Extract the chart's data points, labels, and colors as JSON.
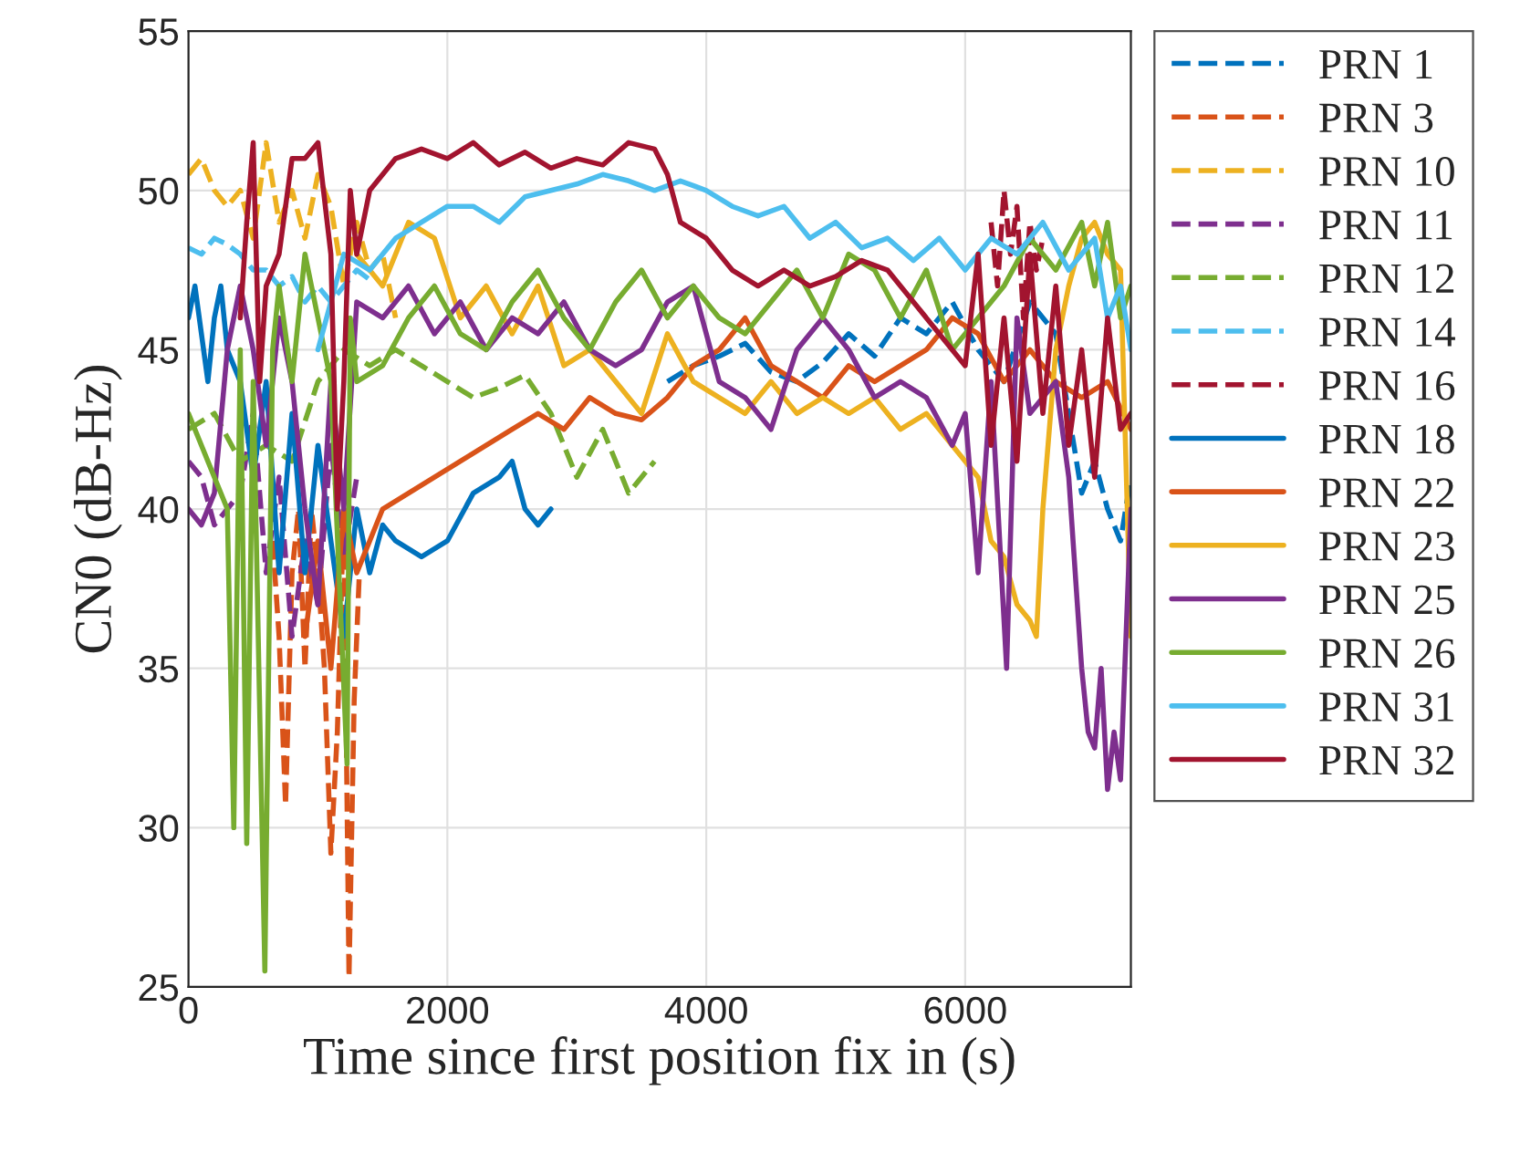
{
  "chart_data": {
    "type": "line",
    "xlabel": "Time since first position fix in (s)",
    "ylabel": "CN0 (dB-Hz)",
    "xlim": [
      0,
      7280
    ],
    "xticks": [
      0,
      2000,
      4000,
      6000
    ],
    "ylim": [
      25,
      55
    ],
    "yticks": [
      25,
      30,
      35,
      40,
      45,
      50,
      55
    ],
    "grid": true,
    "legend": "right",
    "series": [
      {
        "name": "PRN 1",
        "color": "#0072bd",
        "line_style": "dashed",
        "x": [
          3700,
          3900,
          4100,
          4300,
          4500,
          4700,
          4900,
          5100,
          5300,
          5500,
          5700,
          5900,
          6100,
          6300,
          6500,
          6700,
          6900,
          7000,
          7100,
          7200,
          7280
        ],
        "values": [
          44.0,
          44.5,
          44.8,
          45.2,
          44.3,
          44.0,
          44.6,
          45.5,
          44.8,
          46.0,
          45.5,
          46.5,
          45.0,
          44.0,
          46.5,
          45.5,
          40.5,
          41.5,
          40.0,
          39.0,
          41.0
        ]
      },
      {
        "name": "PRN 3",
        "color": "#d95319",
        "line_style": "dashed",
        "x": [
          650,
          700,
          750,
          800,
          850,
          900,
          950,
          1000,
          1050,
          1100,
          1150,
          1200,
          1240,
          1280,
          1320
        ],
        "values": [
          39,
          36,
          30.7,
          38,
          40,
          35,
          40,
          38,
          35,
          29.2,
          33,
          40,
          25.3,
          34,
          38
        ]
      },
      {
        "name": "PRN 10",
        "color": "#edb120",
        "line_style": "dashed",
        "x": [
          0,
          100,
          200,
          300,
          400,
          500,
          600,
          700,
          800,
          900,
          1000,
          1100,
          1200,
          1300,
          1400,
          1500,
          1600
        ],
        "values": [
          50.5,
          51,
          50,
          49.5,
          50,
          48.5,
          51.5,
          49,
          50,
          48.5,
          50.5,
          49.5,
          47,
          49,
          47.5,
          48,
          46
        ]
      },
      {
        "name": "PRN 11",
        "color": "#7e2f8e",
        "line_style": "dashed",
        "x": [
          0,
          100,
          200,
          300,
          400,
          500,
          600,
          700,
          800,
          900,
          1000,
          1100,
          1200,
          1300
        ],
        "values": [
          41.5,
          41,
          39.5,
          40,
          40.5,
          43,
          38,
          41,
          36,
          39,
          37,
          42,
          38.5,
          41
        ]
      },
      {
        "name": "PRN 12",
        "color": "#77ac30",
        "line_style": "dashed",
        "x": [
          0,
          200,
          400,
          600,
          800,
          1000,
          1200,
          1400,
          1600,
          1800,
          2000,
          2200,
          2400,
          2600,
          2800,
          3000,
          3200,
          3400,
          3600
        ],
        "values": [
          42.5,
          43,
          41.5,
          42,
          41.5,
          44,
          45,
          44.5,
          45,
          44.5,
          44.0,
          43.5,
          43.8,
          44.2,
          43,
          41,
          42.5,
          40.5,
          41.5
        ]
      },
      {
        "name": "PRN 14",
        "color": "#4dbeee",
        "line_style": "dashed",
        "x": [
          0,
          100,
          200,
          300,
          400,
          500,
          600,
          700,
          800,
          900,
          1000,
          1100,
          1200,
          1300,
          1400
        ],
        "values": [
          48.2,
          48,
          48.5,
          48.3,
          48,
          47.5,
          47.5,
          47,
          47.3,
          46.5,
          47,
          46.5,
          47,
          47.5,
          47.2
        ]
      },
      {
        "name": "PRN 16",
        "color": "#a2142f",
        "line_style": "dashed",
        "x": [
          6200,
          6250,
          6300,
          6350,
          6400,
          6450,
          6500,
          6550,
          6600
        ],
        "values": [
          49,
          47,
          50,
          48,
          49.5,
          46,
          49,
          47.5,
          48.5
        ]
      },
      {
        "name": "PRN 18",
        "color": "#0072bd",
        "line_style": "solid",
        "x": [
          0,
          50,
          100,
          150,
          200,
          250,
          300,
          400,
          500,
          600,
          700,
          800,
          900,
          1000,
          1100,
          1200,
          1300,
          1400,
          1500,
          1600,
          1800,
          2000,
          2200,
          2400,
          2500,
          2600,
          2700,
          2800
        ],
        "values": [
          46,
          47,
          45.5,
          44,
          46,
          47,
          45,
          44,
          41,
          44,
          38,
          43,
          38,
          42,
          39,
          36,
          40,
          38,
          39.5,
          39,
          38.5,
          39,
          40.5,
          41,
          41.5,
          40,
          39.5,
          40
        ]
      },
      {
        "name": "PRN 22",
        "color": "#d95319",
        "line_style": "solid",
        "x": [
          900,
          1000,
          1100,
          1200,
          1300,
          1400,
          1500,
          1700,
          1900,
          2100,
          2300,
          2500,
          2700,
          2900,
          3100,
          3300,
          3500,
          3700,
          3900,
          4100,
          4300,
          4500,
          4700,
          4900,
          5100,
          5300,
          5500,
          5700,
          5900,
          6100,
          6300,
          6500,
          6700,
          6900,
          7100,
          7280
        ],
        "values": [
          36,
          39,
          35,
          40,
          38,
          39,
          40,
          40.5,
          41,
          41.5,
          42,
          42.5,
          43,
          42.5,
          43.5,
          43,
          42.8,
          43.5,
          44.5,
          45,
          46,
          44.5,
          44,
          43.5,
          44.5,
          44,
          44.5,
          45,
          46,
          45.5,
          44,
          45,
          44,
          43.5,
          44,
          42.5
        ]
      },
      {
        "name": "PRN 23",
        "color": "#edb120",
        "line_style": "solid",
        "x": [
          1300,
          1500,
          1700,
          1900,
          2100,
          2300,
          2500,
          2700,
          2900,
          3100,
          3300,
          3500,
          3700,
          3900,
          4100,
          4300,
          4500,
          4700,
          4900,
          5100,
          5300,
          5500,
          5700,
          5900,
          6100,
          6200,
          6300,
          6400,
          6500,
          6550,
          6600,
          6700,
          6800,
          6900,
          7000,
          7100,
          7200,
          7280
        ],
        "values": [
          48,
          47,
          49,
          48.5,
          46,
          47,
          45.5,
          47,
          44.5,
          45,
          44,
          43,
          45.5,
          44,
          43.5,
          43,
          44,
          43,
          43.5,
          43,
          43.5,
          42.5,
          43,
          42,
          41,
          39,
          38.5,
          37,
          36.5,
          36,
          40,
          45,
          47,
          48.5,
          49,
          48,
          47.5,
          36
        ]
      },
      {
        "name": "PRN 25",
        "color": "#7e2f8e",
        "line_style": "solid",
        "x": [
          0,
          100,
          200,
          300,
          400,
          450,
          500,
          600,
          700,
          800,
          900,
          1000,
          1100,
          1200,
          1300,
          1500,
          1700,
          1900,
          2100,
          2300,
          2500,
          2700,
          2900,
          3100,
          3300,
          3500,
          3700,
          3900,
          4100,
          4300,
          4500,
          4700,
          4900,
          5100,
          5300,
          5500,
          5700,
          5900,
          6000,
          6100,
          6200,
          6320,
          6400,
          6500,
          6700,
          6800,
          6900,
          6950,
          7000,
          7050,
          7100,
          7150,
          7200,
          7280
        ],
        "values": [
          40,
          39.5,
          40.5,
          45,
          47,
          null,
          45,
          42,
          46,
          44,
          40,
          37,
          44,
          40,
          46.5,
          46,
          47,
          45.5,
          46.5,
          45,
          46,
          45.5,
          46.5,
          45,
          44.5,
          45,
          46.5,
          47,
          44,
          43.5,
          42.5,
          45,
          46,
          45,
          43.5,
          44,
          43.5,
          42,
          43,
          38,
          44,
          35,
          46,
          43,
          44,
          41,
          35,
          33,
          32.5,
          35,
          31.2,
          33,
          31.5,
          40
        ]
      },
      {
        "name": "PRN 26",
        "color": "#77ac30",
        "line_style": "solid",
        "x": [
          0,
          100,
          200,
          300,
          350,
          400,
          450,
          500,
          590,
          650,
          700,
          800,
          900,
          1000,
          1100,
          1225,
          1250,
          1300,
          1500,
          1700,
          1900,
          2100,
          2300,
          2500,
          2700,
          2900,
          3100,
          3300,
          3500,
          3700,
          3900,
          4100,
          4300,
          4500,
          4700,
          4900,
          5100,
          5300,
          5500,
          5700,
          5900,
          6100,
          6300,
          6500,
          6700,
          6900,
          7000,
          7100,
          7200,
          7280
        ],
        "values": [
          43,
          42,
          41,
          40,
          30,
          45,
          29.5,
          44,
          25.5,
          45,
          47,
          44,
          48,
          46,
          44,
          32,
          46,
          44,
          44.5,
          46,
          47,
          45.5,
          45,
          46.5,
          47.5,
          46,
          45,
          46.5,
          47.5,
          46,
          47,
          46,
          45.5,
          46.5,
          47.5,
          46,
          48,
          47.5,
          46,
          47.5,
          45,
          46,
          47,
          48.5,
          47.5,
          49,
          47,
          49,
          46,
          47
        ]
      },
      {
        "name": "PRN 31",
        "color": "#4dbeee",
        "line_style": "solid",
        "x": [
          1000,
          1200,
          1400,
          1600,
          1800,
          2000,
          2200,
          2400,
          2600,
          2800,
          3000,
          3200,
          3400,
          3600,
          3800,
          4000,
          4200,
          4400,
          4600,
          4800,
          5000,
          5200,
          5400,
          5600,
          5800,
          6000,
          6200,
          6400,
          6600,
          6800,
          7000,
          7100,
          7200,
          7280
        ],
        "values": [
          45,
          48,
          47.5,
          48.5,
          49,
          49.5,
          49.5,
          49,
          49.8,
          50,
          50.2,
          50.5,
          50.3,
          50,
          50.3,
          50,
          49.5,
          49.2,
          49.5,
          48.5,
          49,
          48.2,
          48.5,
          47.8,
          48.5,
          47.5,
          48.5,
          48,
          49,
          47.5,
          48.5,
          46,
          47,
          45
        ]
      },
      {
        "name": "PRN 32",
        "color": "#a2142f",
        "line_style": "solid",
        "x": [
          400,
          450,
          500,
          550,
          600,
          700,
          800,
          900,
          1000,
          1100,
          1150,
          1200,
          1250,
          1300,
          1400,
          1600,
          1800,
          2000,
          2200,
          2400,
          2600,
          2800,
          3000,
          3200,
          3400,
          3600,
          3700,
          3800,
          4000,
          4200,
          4400,
          4600,
          4800,
          5000,
          5200,
          5400,
          5600,
          5800,
          6000,
          6100,
          6200,
          6300,
          6400,
          6500,
          6600,
          6700,
          6800,
          6900,
          7000,
          7100,
          7200,
          7280
        ],
        "values": [
          46,
          49,
          51.5,
          44,
          47,
          48,
          51,
          51,
          51.5,
          48,
          40,
          44,
          50,
          48,
          50,
          51,
          51.3,
          51,
          51.5,
          50.8,
          51.2,
          50.7,
          51,
          50.8,
          51.5,
          51.3,
          50.5,
          49,
          48.5,
          47.5,
          47,
          47.5,
          47,
          47.3,
          47.8,
          47.5,
          46.5,
          45.5,
          44.5,
          48,
          42,
          46,
          41.5,
          48,
          43,
          47,
          42,
          45,
          41,
          46,
          42.5,
          43
        ]
      }
    ]
  }
}
